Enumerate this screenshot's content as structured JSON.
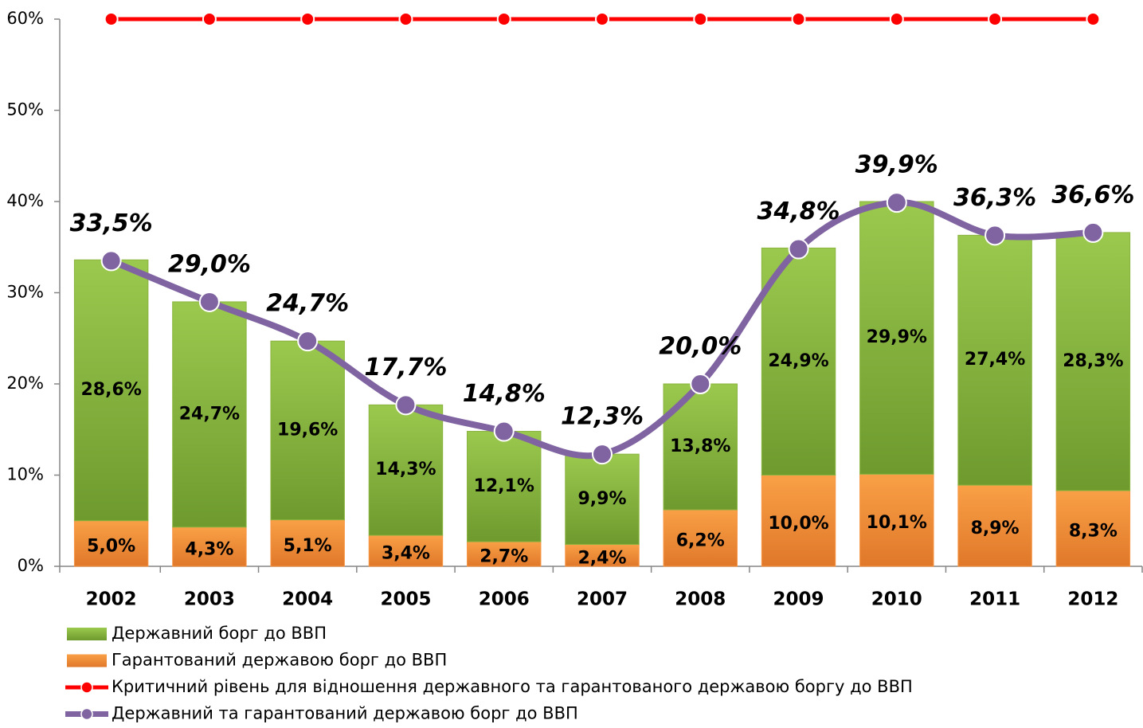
{
  "chart_data": {
    "type": "bar",
    "categories": [
      "2002",
      "2003",
      "2004",
      "2005",
      "2006",
      "2007",
      "2008",
      "2009",
      "2010",
      "2011",
      "2012"
    ],
    "ylim": [
      0,
      60
    ],
    "yticks": [
      {
        "value": 0,
        "label": "0%"
      },
      {
        "value": 10,
        "label": "10%"
      },
      {
        "value": 20,
        "label": "20%"
      },
      {
        "value": 30,
        "label": "30%"
      },
      {
        "value": 40,
        "label": "40%"
      },
      {
        "value": 50,
        "label": "50%"
      },
      {
        "value": 60,
        "label": "60%"
      }
    ],
    "stacked": true,
    "legend": "bottom",
    "series": [
      {
        "name": "Гарантований державою борг до ВВП",
        "type": "bar",
        "color": "#f79646",
        "values": [
          5.0,
          4.3,
          5.1,
          3.4,
          2.7,
          2.4,
          6.2,
          10.0,
          10.1,
          8.9,
          8.3
        ],
        "value_labels": [
          "5,0%",
          "4,3%",
          "5,1%",
          "3,4%",
          "2,7%",
          "2,4%",
          "6,2%",
          "10,0%",
          "10,1%",
          "8,9%",
          "8,3%"
        ]
      },
      {
        "name": "Державний борг до ВВП",
        "type": "bar",
        "color": "#8ab43f",
        "values": [
          28.6,
          24.7,
          19.6,
          14.3,
          12.1,
          9.9,
          13.8,
          24.9,
          29.9,
          27.4,
          28.3
        ],
        "value_labels": [
          "28,6%",
          "24,7%",
          "19,6%",
          "14,3%",
          "12,1%",
          "9,9%",
          "13,8%",
          "24,9%",
          "29,9%",
          "27,4%",
          "28,3%"
        ]
      },
      {
        "name": "Критичний рівень для відношення державного та гарантованого державою боргу до ВВП",
        "type": "line",
        "color": "#ff0000",
        "values": [
          60,
          60,
          60,
          60,
          60,
          60,
          60,
          60,
          60,
          60,
          60
        ]
      },
      {
        "name": "Державний та гарантований державою борг до ВВП",
        "type": "line",
        "color": "#8064a2",
        "smooth": true,
        "values": [
          33.5,
          29.0,
          24.7,
          17.7,
          14.8,
          12.3,
          20.0,
          34.8,
          39.9,
          36.3,
          36.6
        ],
        "value_labels": [
          "33,5%",
          "29,0%",
          "24,7%",
          "17,7%",
          "14,8%",
          "12,3%",
          "20,0%",
          "34,8%",
          "39,9%",
          "36,3%",
          "36,6%"
        ]
      }
    ]
  }
}
